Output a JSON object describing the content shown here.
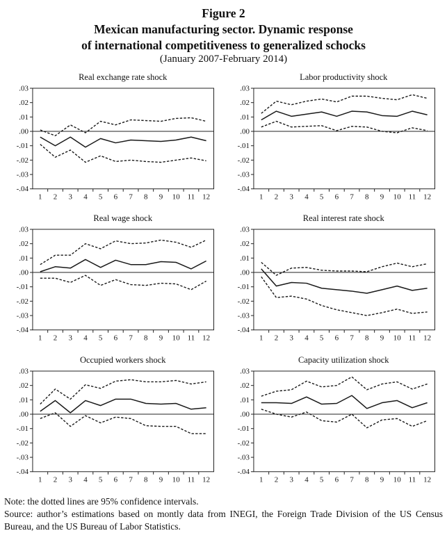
{
  "figure": {
    "label": "Figure 2",
    "title_line1": "Mexican manufacturing sector. Dynamic response",
    "title_line2": "of international competitiveness to generalized schocks",
    "subtitle": "(January 2007-February 2014)"
  },
  "chart_data": [
    {
      "type": "line",
      "title": "Real exchange rate shock",
      "x": [
        1,
        2,
        3,
        4,
        5,
        6,
        7,
        8,
        9,
        10,
        11,
        12
      ],
      "ylim": [
        -0.04,
        0.03
      ],
      "yticks": [
        ".03",
        ".02",
        ".01",
        ".00",
        "-.01",
        "-.02",
        "-.03",
        "-.04"
      ],
      "zero_line": true,
      "grid": false,
      "legend": "none",
      "series": [
        {
          "name": "upper-95ci",
          "style": "dashed",
          "values": [
            0.001,
            -0.003,
            0.0045,
            -0.001,
            0.007,
            0.0045,
            0.008,
            0.0075,
            0.007,
            0.009,
            0.0095,
            0.007
          ]
        },
        {
          "name": "response",
          "style": "solid",
          "values": [
            -0.004,
            -0.01,
            -0.004,
            -0.011,
            -0.005,
            -0.008,
            -0.006,
            -0.0065,
            -0.007,
            -0.006,
            -0.004,
            -0.0065
          ]
        },
        {
          "name": "lower-95ci",
          "style": "dashed",
          "values": [
            -0.009,
            -0.018,
            -0.013,
            -0.0215,
            -0.017,
            -0.021,
            -0.02,
            -0.021,
            -0.0215,
            -0.02,
            -0.0185,
            -0.0205
          ]
        }
      ]
    },
    {
      "type": "line",
      "title": "Labor productivity shock",
      "x": [
        1,
        2,
        3,
        4,
        5,
        6,
        7,
        8,
        9,
        10,
        11,
        12
      ],
      "ylim": [
        -0.04,
        0.03
      ],
      "yticks": [
        ".03",
        ".02",
        ".01",
        ".00",
        "-.01",
        "-.02",
        "-.03",
        "-.04"
      ],
      "zero_line": true,
      "grid": false,
      "legend": "none",
      "series": [
        {
          "name": "upper-95ci",
          "style": "dashed",
          "values": [
            0.0125,
            0.021,
            0.0185,
            0.021,
            0.0225,
            0.0205,
            0.0245,
            0.0245,
            0.023,
            0.022,
            0.0255,
            0.023
          ]
        },
        {
          "name": "response",
          "style": "solid",
          "values": [
            0.008,
            0.014,
            0.0105,
            0.012,
            0.0135,
            0.0105,
            0.014,
            0.0135,
            0.011,
            0.0105,
            0.014,
            0.0115
          ]
        },
        {
          "name": "lower-95ci",
          "style": "dashed",
          "values": [
            0.003,
            0.007,
            0.003,
            0.0035,
            0.004,
            0.0005,
            0.0035,
            0.003,
            0,
            -0.001,
            0.0025,
            0.0005
          ]
        }
      ]
    },
    {
      "type": "line",
      "title": "Real wage shock",
      "x": [
        1,
        2,
        3,
        4,
        5,
        6,
        7,
        8,
        9,
        10,
        11,
        12
      ],
      "ylim": [
        -0.04,
        0.03
      ],
      "yticks": [
        ".03",
        ".02",
        ".01",
        ".00",
        "-.01",
        "-.02",
        "-.03",
        "-.04"
      ],
      "zero_line": true,
      "grid": false,
      "legend": "none",
      "series": [
        {
          "name": "upper-95ci",
          "style": "dashed",
          "values": [
            0.0055,
            0.012,
            0.012,
            0.02,
            0.0165,
            0.022,
            0.02,
            0.0205,
            0.0225,
            0.021,
            0.0175,
            0.0225
          ]
        },
        {
          "name": "response",
          "style": "solid",
          "values": [
            0.0005,
            0.004,
            0.003,
            0.009,
            0.0035,
            0.0085,
            0.0055,
            0.0055,
            0.0075,
            0.007,
            0.0025,
            0.008
          ]
        },
        {
          "name": "lower-95ci",
          "style": "dashed",
          "values": [
            -0.004,
            -0.004,
            -0.007,
            -0.002,
            -0.009,
            -0.005,
            -0.0085,
            -0.009,
            -0.0075,
            -0.008,
            -0.012,
            -0.006
          ]
        }
      ]
    },
    {
      "type": "line",
      "title": "Real interest rate shock",
      "x": [
        1,
        2,
        3,
        4,
        5,
        6,
        7,
        8,
        9,
        10,
        11,
        12
      ],
      "ylim": [
        -0.04,
        0.03
      ],
      "yticks": [
        ".03",
        ".02",
        ".01",
        ".00",
        "-.01",
        "-.02",
        "-.03",
        "-.04"
      ],
      "zero_line": true,
      "grid": false,
      "legend": "none",
      "series": [
        {
          "name": "upper-95ci",
          "style": "dashed",
          "values": [
            0.007,
            -0.002,
            0.003,
            0.0035,
            0.0015,
            0.001,
            0.001,
            0.0005,
            0.004,
            0.0065,
            0.004,
            0.006
          ]
        },
        {
          "name": "response",
          "style": "solid",
          "values": [
            0.0025,
            -0.0095,
            -0.007,
            -0.0075,
            -0.011,
            -0.012,
            -0.013,
            -0.0145,
            -0.012,
            -0.0095,
            -0.0125,
            -0.011
          ]
        },
        {
          "name": "lower-95ci",
          "style": "dashed",
          "values": [
            -0.003,
            -0.0175,
            -0.0165,
            -0.0185,
            -0.023,
            -0.026,
            -0.028,
            -0.03,
            -0.028,
            -0.0255,
            -0.0285,
            -0.0275
          ]
        }
      ]
    },
    {
      "type": "line",
      "title": "Occupied workers shock",
      "x": [
        1,
        2,
        3,
        4,
        5,
        6,
        7,
        8,
        9,
        10,
        11,
        12
      ],
      "ylim": [
        -0.04,
        0.03
      ],
      "yticks": [
        ".03",
        ".02",
        ".01",
        ".00",
        "-.01",
        "-.02",
        "-.03",
        "-.04"
      ],
      "zero_line": true,
      "grid": false,
      "legend": "none",
      "series": [
        {
          "name": "upper-95ci",
          "style": "dashed",
          "values": [
            0.007,
            0.0175,
            0.0105,
            0.0205,
            0.018,
            0.023,
            0.024,
            0.0225,
            0.0225,
            0.0235,
            0.021,
            0.0225
          ]
        },
        {
          "name": "response",
          "style": "solid",
          "values": [
            0.002,
            0.0095,
            0.001,
            0.0095,
            0.006,
            0.0105,
            0.0105,
            0.0075,
            0.007,
            0.0075,
            0.0035,
            0.0045
          ]
        },
        {
          "name": "lower-95ci",
          "style": "dashed",
          "values": [
            -0.003,
            0.001,
            -0.0085,
            -0.001,
            -0.006,
            -0.002,
            -0.003,
            -0.008,
            -0.0085,
            -0.0085,
            -0.0135,
            -0.0135
          ]
        }
      ]
    },
    {
      "type": "line",
      "title": "Capacity utilization shock",
      "x": [
        1,
        2,
        3,
        4,
        5,
        6,
        7,
        8,
        9,
        10,
        11,
        12
      ],
      "ylim": [
        -0.04,
        0.03
      ],
      "yticks": [
        ".03",
        ".02",
        ".01",
        ".00",
        "-.01",
        "-.02",
        "-.03",
        "-.04"
      ],
      "zero_line": true,
      "grid": false,
      "legend": "none",
      "series": [
        {
          "name": "upper-95ci",
          "style": "dashed",
          "values": [
            0.0125,
            0.016,
            0.017,
            0.023,
            0.019,
            0.02,
            0.026,
            0.017,
            0.021,
            0.0225,
            0.0175,
            0.021
          ]
        },
        {
          "name": "response",
          "style": "solid",
          "values": [
            0.008,
            0.008,
            0.0075,
            0.012,
            0.007,
            0.0075,
            0.013,
            0.004,
            0.008,
            0.0095,
            0.0045,
            0.008
          ]
        },
        {
          "name": "lower-95ci",
          "style": "dashed",
          "values": [
            0.0035,
            0,
            -0.002,
            0.0015,
            -0.0045,
            -0.0055,
            0,
            -0.0095,
            -0.004,
            -0.003,
            -0.0085,
            -0.0045
          ]
        }
      ]
    }
  ],
  "notes": {
    "note": "Note: the dotted lines are 95% confidence intervals.",
    "source": "Source: author’s estimations based on montly data from INEGI, the Foreign Trade Division of the US Census Bureau, and the US Bureau of Labor Statistics."
  }
}
